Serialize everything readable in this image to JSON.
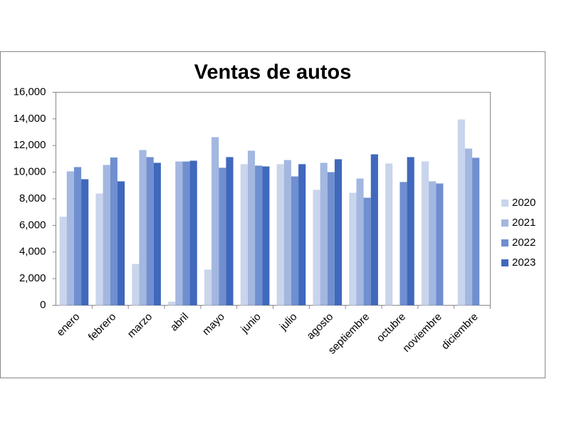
{
  "chart_data": {
    "type": "bar",
    "title": "Ventas de autos",
    "categories": [
      "enero",
      "febrero",
      "marzo",
      "abril",
      "mayo",
      "junio",
      "julio",
      "agosto",
      "septiembre",
      "octubre",
      "noviembre",
      "diciembre"
    ],
    "series": [
      {
        "name": "2020",
        "color": "#c9d5ec",
        "values": [
          6650,
          8400,
          3100,
          270,
          2680,
          10600,
          10600,
          8670,
          8450,
          10650,
          10810,
          13960
        ]
      },
      {
        "name": "2021",
        "color": "#a3b7e0",
        "values": [
          10060,
          10540,
          11660,
          10800,
          12630,
          11610,
          10910,
          10700,
          9520,
          null,
          9310,
          11770
        ]
      },
      {
        "name": "2022",
        "color": "#6f8fd0",
        "values": [
          10380,
          11100,
          11130,
          10800,
          10330,
          10490,
          9680,
          10000,
          8080,
          9260,
          9150,
          11080
        ]
      },
      {
        "name": "2023",
        "color": "#4068bc",
        "values": [
          9470,
          9310,
          10700,
          10860,
          11130,
          10430,
          10600,
          10970,
          11340,
          11130,
          null,
          null
        ]
      }
    ],
    "ylim": [
      0,
      16000
    ],
    "yticks": [
      0,
      {
        "value": 2000,
        "label": "2,000"
      },
      {
        "value": 4000,
        "label": "4,000"
      },
      {
        "value": 6000,
        "label": "6,000"
      },
      {
        "value": 8000,
        "label": "8,000"
      },
      {
        "value": 10000,
        "label": "10,000"
      },
      {
        "value": 12000,
        "label": "12,000"
      },
      {
        "value": 14000,
        "label": "14,000"
      },
      {
        "value": 16000,
        "label": "16,000"
      }
    ],
    "legend": "right"
  }
}
